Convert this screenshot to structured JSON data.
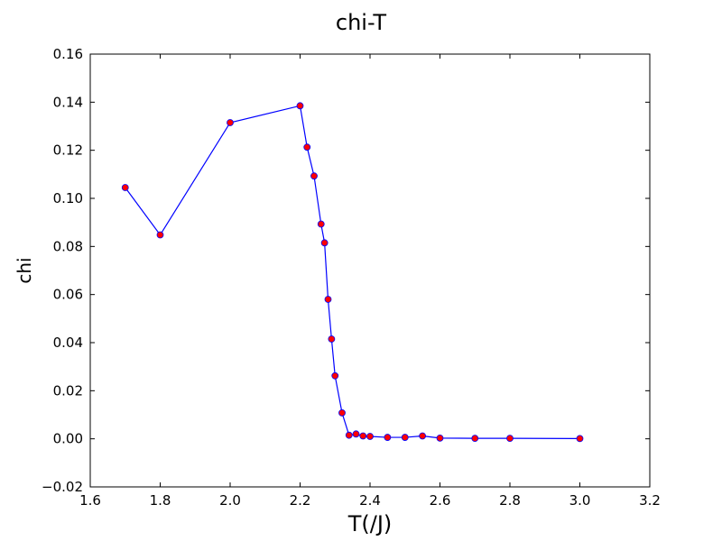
{
  "chart_data": {
    "type": "line",
    "title": "chi-T",
    "xlabel": "T(/J)",
    "ylabel": "chi",
    "xlim": [
      1.6,
      3.2
    ],
    "ylim": [
      -0.02,
      0.16
    ],
    "x_ticks": [
      "1.6",
      "1.8",
      "2.0",
      "2.2",
      "2.4",
      "2.6",
      "2.8",
      "3.0",
      "3.2"
    ],
    "y_ticks": [
      "−0.02",
      "0.00",
      "0.02",
      "0.04",
      "0.06",
      "0.08",
      "0.10",
      "0.12",
      "0.14",
      "0.16"
    ],
    "grid": false,
    "line_color": "#0000ff",
    "marker_color": "#ff0000",
    "marker_edge_color": "#0000ff",
    "series": [
      {
        "x": [
          1.7,
          1.8,
          2.0,
          2.2,
          2.22,
          2.24,
          2.26,
          2.27,
          2.28,
          2.29,
          2.3,
          2.32,
          2.34,
          2.36,
          2.38,
          2.4,
          2.45,
          2.5,
          2.55,
          2.6,
          2.7,
          2.8,
          3.0
        ],
        "y": [
          0.1045,
          0.0848,
          0.1315,
          0.1385,
          0.1213,
          0.1093,
          0.0893,
          0.0815,
          0.058,
          0.0415,
          0.0262,
          0.0108,
          0.0015,
          0.002,
          0.0012,
          0.001,
          0.0006,
          0.0006,
          0.0012,
          0.0003,
          0.0002,
          0.0002,
          0.0001
        ]
      }
    ]
  }
}
